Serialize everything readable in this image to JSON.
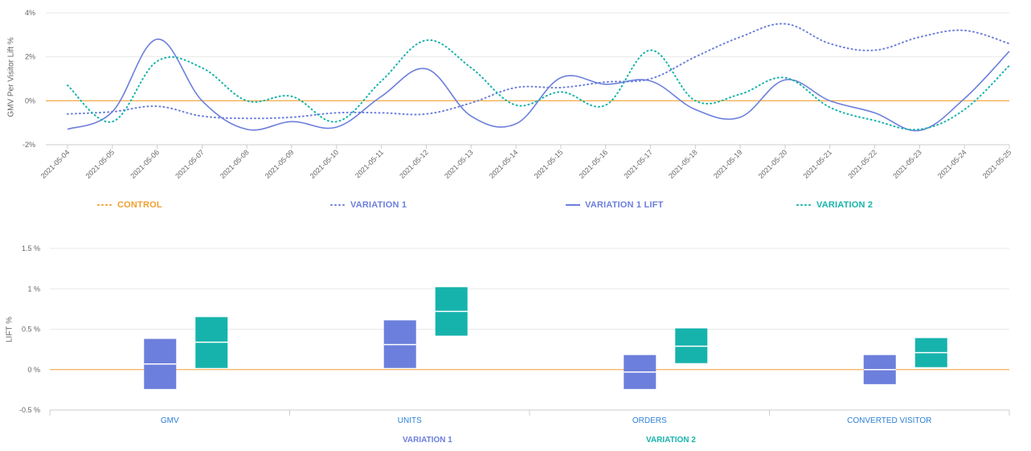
{
  "colors": {
    "control": "#f0a030",
    "variation1": "#6c7fdc",
    "variation2": "#16b3ac",
    "grid": "#e8e8e8",
    "axis_text": "#666666",
    "category_text": "#2b7fd6"
  },
  "chart_data": [
    {
      "type": "line",
      "ylabel": "GMV Per Visitor Lift %",
      "ylim": [
        -2,
        4
      ],
      "yticks": [
        "4%",
        "2%",
        "0%",
        "-2%"
      ],
      "ytick_values": [
        4,
        2,
        0,
        -2
      ],
      "grid": true,
      "legend_position": "bottom",
      "x": [
        "2021-05-04",
        "2021-05-05",
        "2021-05-06",
        "2021-05-07",
        "2021-05-08",
        "2021-05-09",
        "2021-05-10",
        "2021-05-11",
        "2021-05-12",
        "2021-05-13",
        "2021-05-14",
        "2021-05-15",
        "2021-05-16",
        "2021-05-17",
        "2021-05-18",
        "2021-05-19",
        "2021-05-20",
        "2021-05-21",
        "2021-05-22",
        "2021-05-23",
        "2021-05-24",
        "2021-05-25"
      ],
      "series": [
        {
          "name": "CONTROL",
          "style": "dotted",
          "color": "#f0a030",
          "values": [
            0,
            0,
            0,
            0,
            0,
            0,
            0,
            0,
            0,
            0,
            0,
            0,
            0,
            0,
            0,
            0,
            0,
            0,
            0,
            0,
            0,
            0
          ]
        },
        {
          "name": "VARIATION 1",
          "style": "dotted",
          "color": "#6c7fdc",
          "values": [
            -0.6,
            -0.5,
            -0.25,
            -0.7,
            -0.8,
            -0.75,
            -0.55,
            -0.55,
            -0.6,
            -0.1,
            0.6,
            0.6,
            0.85,
            1.0,
            2.0,
            2.9,
            3.5,
            2.6,
            2.3,
            2.9,
            3.2,
            2.6
          ]
        },
        {
          "name": "VARIATION 1 LIFT",
          "style": "solid",
          "color": "#6c7fdc",
          "values": [
            -1.3,
            -0.5,
            2.8,
            0,
            -1.3,
            -0.95,
            -1.2,
            0.2,
            1.45,
            -0.7,
            -1.05,
            1.05,
            0.75,
            0.9,
            -0.4,
            -0.75,
            0.95,
            0,
            -0.55,
            -1.35,
            0.1,
            2.25
          ]
        },
        {
          "name": "VARIATION 2",
          "style": "dotted",
          "color": "#16b3ac",
          "values": [
            0.7,
            -0.95,
            1.8,
            1.5,
            0,
            0.2,
            -0.95,
            0.9,
            2.75,
            1.5,
            -0.2,
            0.4,
            -0.2,
            2.3,
            0,
            0.3,
            1.05,
            -0.3,
            -0.9,
            -1.3,
            -0.4,
            1.6
          ]
        }
      ]
    },
    {
      "type": "bar",
      "subtype": "interval",
      "ylabel": "LIFT %",
      "ylim": [
        -0.5,
        1.5
      ],
      "yticks": [
        "1.5 %",
        "1 %",
        "0.5 %",
        "0 %",
        "-0.5 %"
      ],
      "ytick_values": [
        1.5,
        1.0,
        0.5,
        0,
        -0.5
      ],
      "grid": true,
      "legend_position": "bottom",
      "categories": [
        "GMV",
        "UNITS",
        "ORDERS",
        "CONVERTED VISITOR"
      ],
      "series": [
        {
          "name": "VARIATION 1",
          "color": "#6c7fdc",
          "low": [
            -0.24,
            0.02,
            -0.24,
            -0.18
          ],
          "mid": [
            0.07,
            0.31,
            -0.03,
            0.0
          ],
          "high": [
            0.38,
            0.61,
            0.18,
            0.18
          ]
        },
        {
          "name": "VARIATION 2",
          "color": "#16b3ac",
          "low": [
            0.02,
            0.42,
            0.08,
            0.03
          ],
          "mid": [
            0.34,
            0.72,
            0.29,
            0.21
          ],
          "high": [
            0.65,
            1.02,
            0.51,
            0.39
          ]
        }
      ]
    }
  ]
}
